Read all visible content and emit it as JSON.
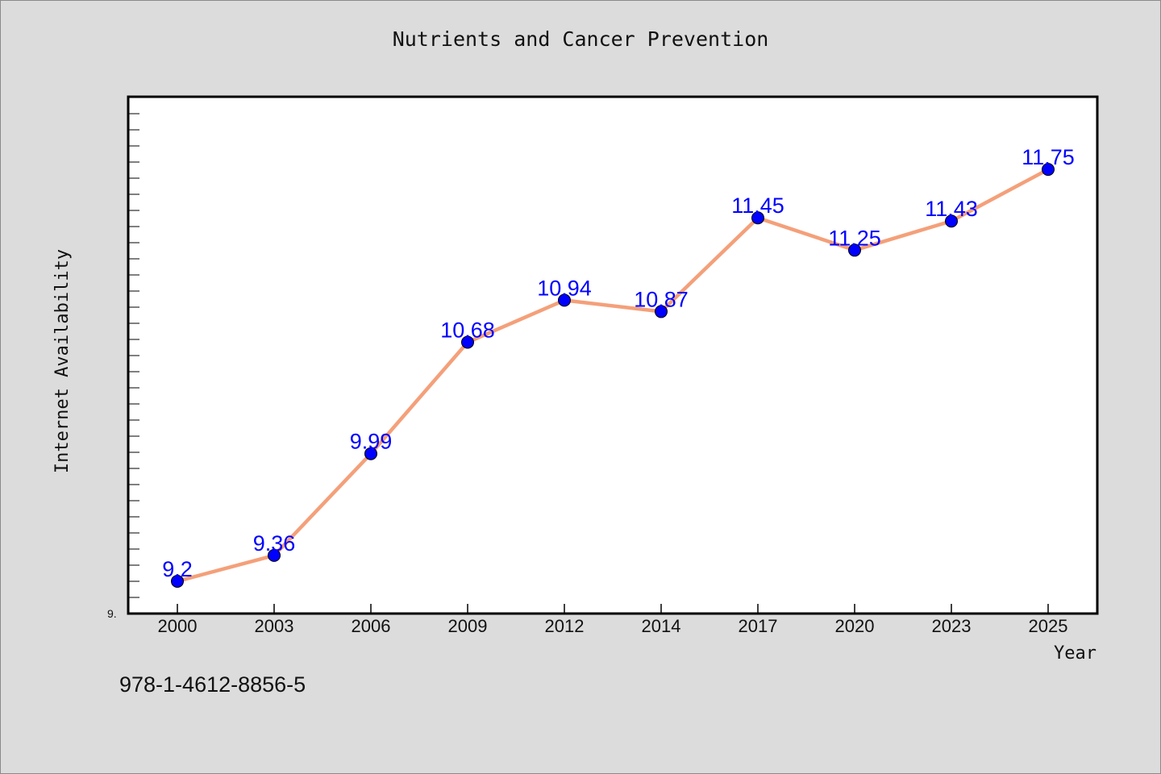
{
  "chart_data": {
    "type": "line",
    "title": "Nutrients and Cancer Prevention",
    "xlabel": "Year",
    "ylabel": "Internet Availability",
    "categories": [
      "2000",
      "2003",
      "2006",
      "2009",
      "2012",
      "2014",
      "2017",
      "2020",
      "2023",
      "2025"
    ],
    "series": [
      {
        "values": [
          9.2,
          9.36,
          9.99,
          10.68,
          10.94,
          10.87,
          11.45,
          11.25,
          11.43,
          11.75
        ],
        "line_color": "#f4a07a",
        "marker_color": "#0000ff"
      }
    ],
    "data_labels": [
      "9.2",
      "9.36",
      "9.99",
      "10.68",
      "10.94",
      "10.87",
      "11.45",
      "11.25",
      "11.43",
      "11.75"
    ],
    "ylim": [
      9.0,
      12.2
    ],
    "y_tick_labels": [
      "9."
    ],
    "grid": false,
    "legend": "none"
  },
  "footer_text": "978-1-4612-8856-5"
}
